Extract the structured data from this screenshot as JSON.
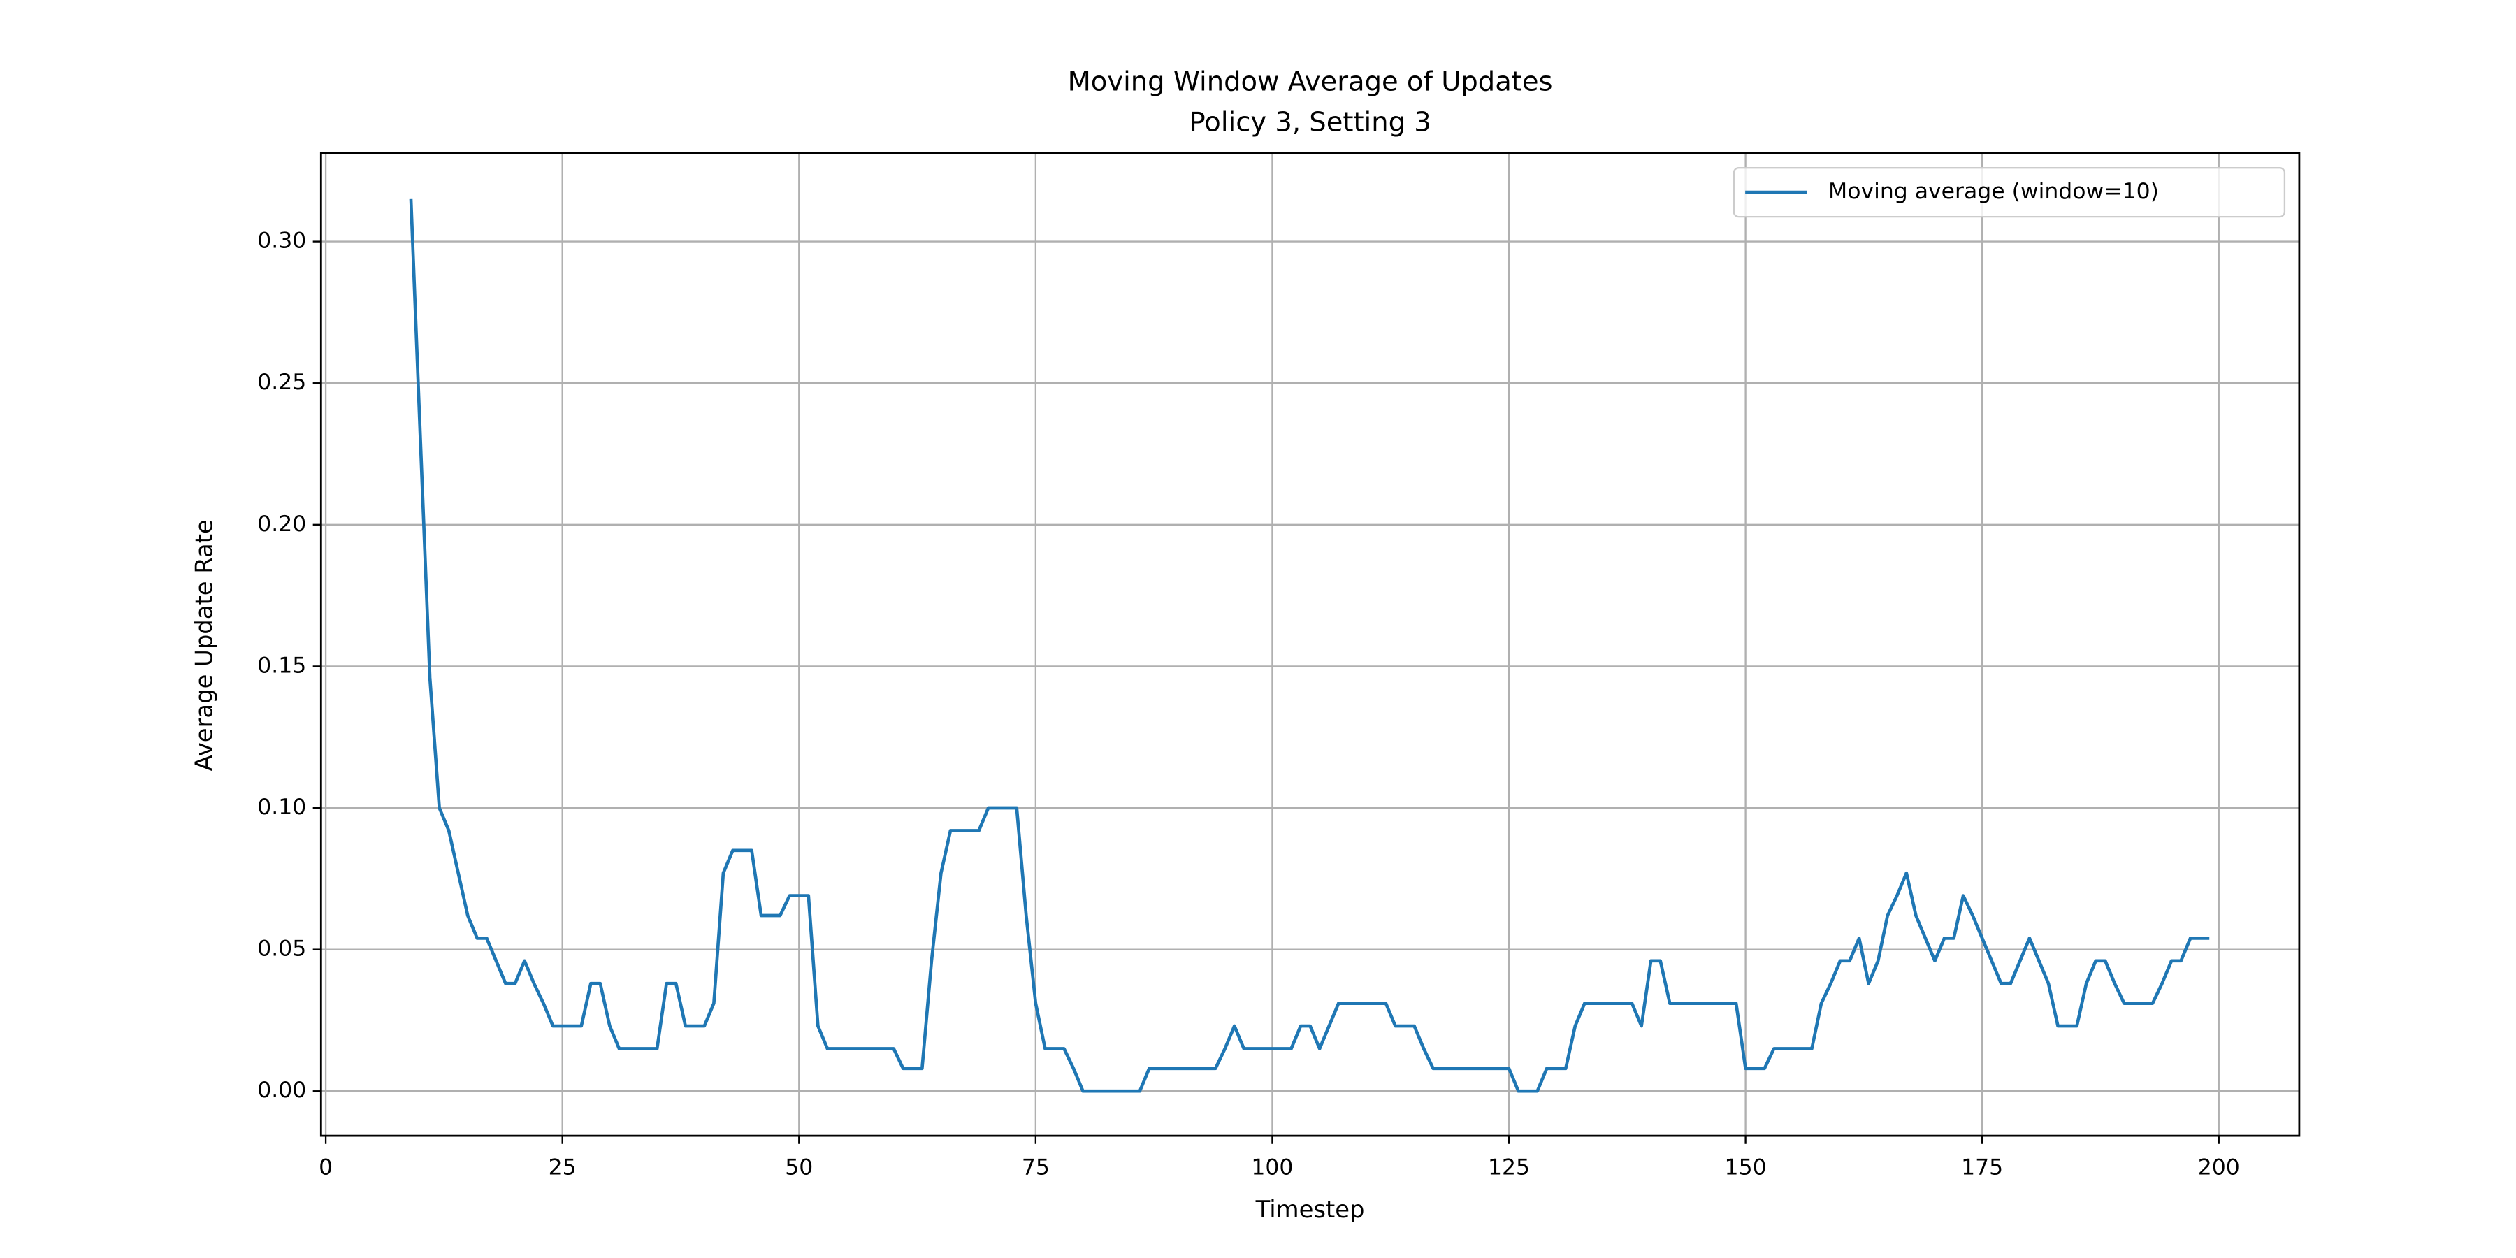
{
  "chart_data": {
    "type": "line",
    "title": "Moving Window Average of Updates",
    "subtitle": "Policy 3, Setting 3",
    "x_label": "Timestep",
    "y_label": "Average Update Rate",
    "x": [
      9,
      10,
      11,
      12,
      13,
      14,
      15,
      16,
      17,
      18,
      19,
      20,
      21,
      22,
      23,
      24,
      25,
      26,
      27,
      28,
      29,
      30,
      31,
      32,
      33,
      34,
      35,
      36,
      37,
      38,
      39,
      40,
      41,
      42,
      43,
      44,
      45,
      46,
      47,
      48,
      49,
      50,
      51,
      52,
      53,
      54,
      55,
      56,
      57,
      58,
      59,
      60,
      61,
      62,
      63,
      64,
      65,
      66,
      67,
      68,
      69,
      70,
      71,
      72,
      73,
      74,
      75,
      76,
      77,
      78,
      79,
      80,
      81,
      82,
      83,
      84,
      85,
      86,
      87,
      88,
      89,
      90,
      91,
      92,
      93,
      94,
      95,
      96,
      97,
      98,
      99,
      100,
      101,
      102,
      103,
      104,
      105,
      106,
      107,
      108,
      109,
      110,
      111,
      112,
      113,
      114,
      115,
      116,
      117,
      118,
      119,
      120,
      121,
      122,
      123,
      124,
      125,
      126,
      127,
      128,
      129,
      130,
      131,
      132,
      133,
      134,
      135,
      136,
      137,
      138,
      139,
      140,
      141,
      142,
      143,
      144,
      145,
      146,
      147,
      148,
      149,
      150,
      151,
      152,
      153,
      154,
      155,
      156,
      157,
      158,
      159,
      160,
      161,
      162,
      163,
      164,
      165,
      166,
      167,
      168,
      169,
      170,
      171,
      172,
      173,
      174,
      175,
      176,
      177,
      178,
      179,
      180,
      181,
      182,
      183,
      184,
      185,
      186,
      187,
      188,
      189,
      190,
      191,
      192,
      193,
      194,
      195,
      196,
      197,
      198,
      199
    ],
    "series": [
      {
        "name": "Moving average (window=10)",
        "color": "#1f77b4",
        "values": [
          0.315,
          0.23,
          0.146,
          0.1,
          0.092,
          0.077,
          0.062,
          0.054,
          0.054,
          0.046,
          0.038,
          0.038,
          0.046,
          0.038,
          0.031,
          0.023,
          0.023,
          0.023,
          0.023,
          0.038,
          0.038,
          0.023,
          0.015,
          0.015,
          0.015,
          0.015,
          0.015,
          0.038,
          0.038,
          0.023,
          0.023,
          0.023,
          0.031,
          0.077,
          0.085,
          0.085,
          0.085,
          0.062,
          0.062,
          0.062,
          0.069,
          0.069,
          0.069,
          0.023,
          0.015,
          0.015,
          0.015,
          0.015,
          0.015,
          0.015,
          0.015,
          0.015,
          0.008,
          0.008,
          0.008,
          0.046,
          0.077,
          0.092,
          0.092,
          0.092,
          0.092,
          0.1,
          0.1,
          0.1,
          0.1,
          0.062,
          0.031,
          0.015,
          0.015,
          0.015,
          0.008,
          0,
          0,
          0,
          0,
          0,
          0,
          0,
          0.008,
          0.008,
          0.008,
          0.008,
          0.008,
          0.008,
          0.008,
          0.008,
          0.015,
          0.023,
          0.015,
          0.015,
          0.015,
          0.015,
          0.015,
          0.015,
          0.023,
          0.023,
          0.015,
          0.023,
          0.031,
          0.031,
          0.031,
          0.031,
          0.031,
          0.031,
          0.023,
          0.023,
          0.023,
          0.015,
          0.008,
          0.008,
          0.008,
          0.008,
          0.008,
          0.008,
          0.008,
          0.008,
          0.008,
          0,
          0,
          0,
          0.008,
          0.008,
          0.008,
          0.023,
          0.031,
          0.031,
          0.031,
          0.031,
          0.031,
          0.031,
          0.023,
          0.046,
          0.046,
          0.031,
          0.031,
          0.031,
          0.031,
          0.031,
          0.031,
          0.031,
          0.031,
          0.008,
          0.008,
          0.008,
          0.015,
          0.015,
          0.015,
          0.015,
          0.015,
          0.031,
          0.038,
          0.046,
          0.046,
          0.054,
          0.038,
          0.046,
          0.062,
          0.069,
          0.077,
          0.062,
          0.054,
          0.046,
          0.054,
          0.054,
          0.069,
          0.062,
          0.054,
          0.046,
          0.038,
          0.038,
          0.046,
          0.054,
          0.046,
          0.038,
          0.023,
          0.023,
          0.023,
          0.038,
          0.046,
          0.046,
          0.038,
          0.031,
          0.031,
          0.031,
          0.031,
          0.038,
          0.046,
          0.046,
          0.054,
          0.054,
          0.054
        ]
      }
    ],
    "xlim": [
      -0.5,
      208.5
    ],
    "ylim": [
      -0.01577,
      0.3312
    ],
    "xticks": [
      0,
      25,
      50,
      75,
      100,
      125,
      150,
      175,
      200
    ],
    "yticks": [
      {
        "value": 0,
        "label": "0.00"
      },
      {
        "value": 0.05,
        "label": "0.05"
      },
      {
        "value": 0.1,
        "label": "0.10"
      },
      {
        "value": 0.15,
        "label": "0.15"
      },
      {
        "value": 0.2,
        "label": "0.20"
      },
      {
        "value": 0.25,
        "label": "0.25"
      },
      {
        "value": 0.3,
        "label": "0.30"
      }
    ],
    "grid": true,
    "legend": "upper right"
  }
}
